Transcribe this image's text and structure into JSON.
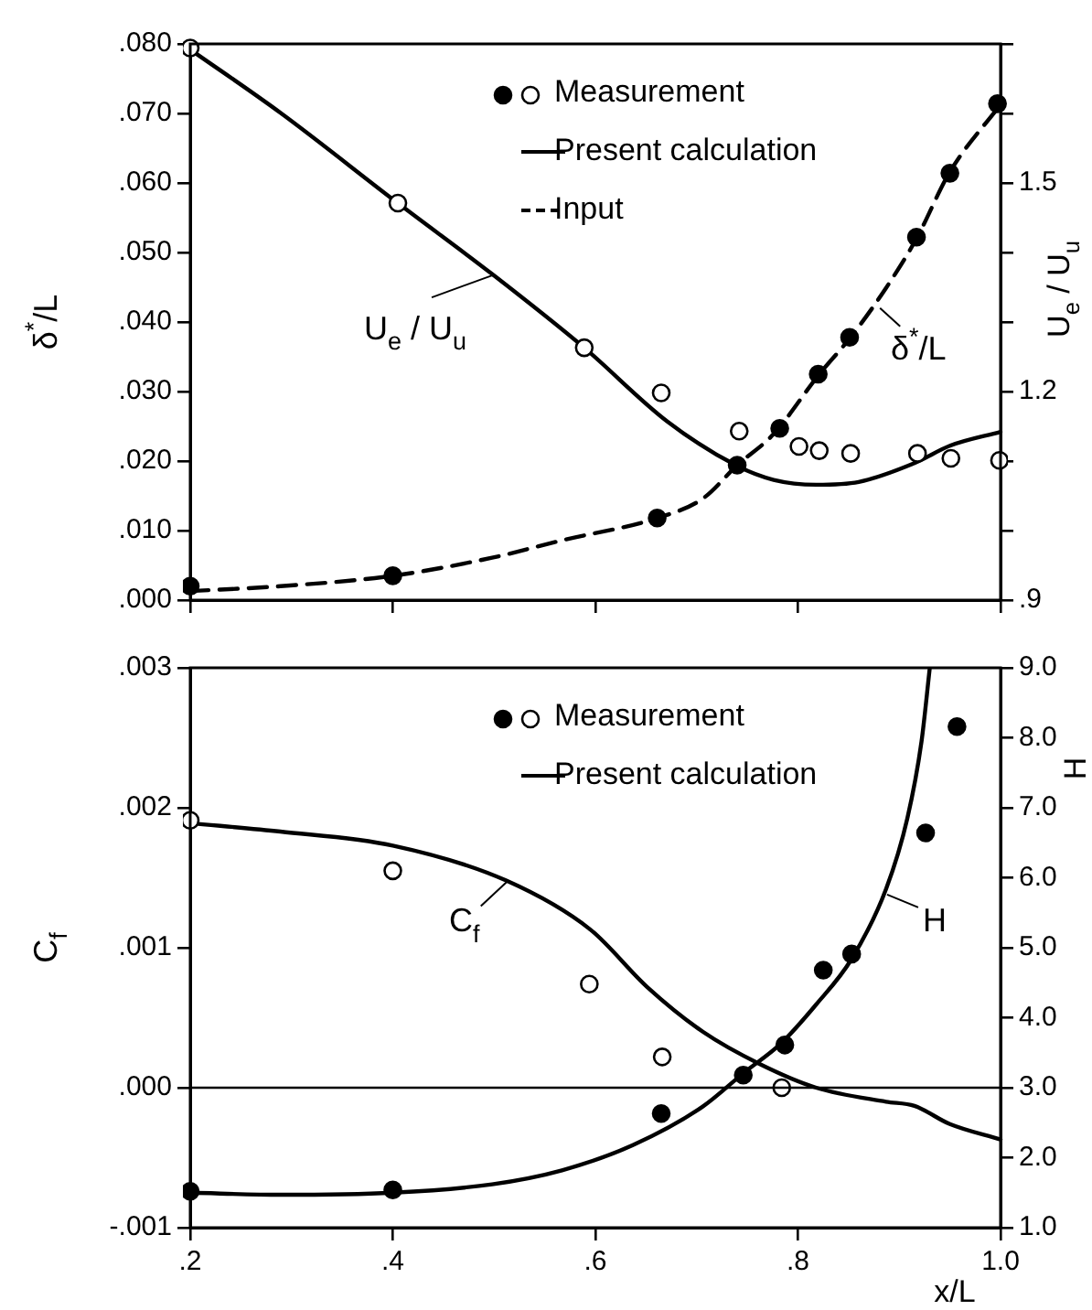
{
  "chart_data": [
    {
      "type": "line",
      "ylabel": "δ$^{*}$/L",
      "y2label": "U$_{e}$ / U$_{u}$",
      "legend": "top right",
      "tick_labels": "y",
      "xlim": [
        0.2,
        1.0
      ],
      "xticks": [
        {
          "value": 0.2,
          "label": null
        },
        {
          "value": 0.4,
          "label": null
        },
        {
          "value": 0.6,
          "label": null
        },
        {
          "value": 0.8,
          "label": null
        },
        {
          "value": 1.0,
          "label": null
        }
      ],
      "ylim": [
        0,
        0.08
      ],
      "yticks": [
        {
          "value": 0,
          "label": ".000"
        },
        {
          "value": 0.01,
          "label": ".010"
        },
        {
          "value": 0.02,
          "label": ".020"
        },
        {
          "value": 0.03,
          "label": ".030"
        },
        {
          "value": 0.04,
          "label": ".040"
        },
        {
          "value": 0.05,
          "label": ".050"
        },
        {
          "value": 0.06,
          "label": ".060"
        },
        {
          "value": 0.07,
          "label": ".070"
        },
        {
          "value": 0.08,
          "label": ".080"
        }
      ],
      "y2lim": [
        0.9,
        1.7
      ],
      "y2ticks": [
        {
          "value": 0.9,
          "label": ".9"
        },
        {
          "value": 1.0,
          "label": null
        },
        {
          "value": 1.1,
          "label": null
        },
        1.2,
        {
          "value": 1.3,
          "label": null
        },
        {
          "value": 1.4,
          "label": null
        },
        1.5,
        {
          "value": 1.6,
          "label": null
        },
        {
          "value": 1.7,
          "label": null
        }
      ],
      "annotations": [
        {
          "text": "U$_{e}$ / U$_{u}$",
          "x": 0.498,
          "y": 0.0467
        },
        {
          "text": "δ$^{*}$/L",
          "x": 0.881,
          "y": 0.042
        }
      ],
      "series": [
        {
          "name": "Measurement",
          "type": "scatter",
          "marker": "circle",
          "color": "#ffffff",
          "axis": "y2",
          "x": [
            0.2,
            0.405,
            0.589,
            0.665,
            0.742,
            0.801,
            0.821,
            0.852,
            0.918,
            0.951,
            0.999
          ],
          "values": [
            1.694,
            1.471,
            1.263,
            1.198,
            1.143,
            1.121,
            1.115,
            1.111,
            1.111,
            1.104,
            1.101
          ]
        },
        {
          "type": "scatter",
          "marker": "circle",
          "color": "#000000",
          "x": [
            0.2,
            0.4,
            0.661,
            0.74,
            0.782,
            0.82,
            0.851,
            0.917,
            0.95,
            0.997
          ],
          "values": [
            0.002,
            0.0035,
            0.0118,
            0.0194,
            0.0247,
            0.0325,
            0.0378,
            0.0522,
            0.0614,
            0.0714
          ]
        },
        {
          "name": "Present calculation",
          "type": "line",
          "marker": "none",
          "line_style": "solid",
          "color": "#000000",
          "axis": "y2",
          "x": [
            0.2,
            0.289,
            0.405,
            0.498,
            0.589,
            0.671,
            0.74,
            0.776,
            0.818,
            0.86,
            0.915,
            0.95,
            1.0
          ],
          "values": [
            1.692,
            1.601,
            1.471,
            1.369,
            1.263,
            1.157,
            1.093,
            1.073,
            1.066,
            1.07,
            1.097,
            1.122,
            1.142
          ]
        },
        {
          "name": "Input",
          "type": "line",
          "marker": "none",
          "line_style": "dashed",
          "color": "#000000",
          "x": [
            0.2,
            0.289,
            0.4,
            0.498,
            0.567,
            0.661,
            0.706,
            0.74,
            0.776,
            0.82,
            0.853,
            0.887,
            0.917,
            0.95,
            1.0
          ],
          "values": [
            0.0013,
            0.002,
            0.0035,
            0.0061,
            0.0086,
            0.0118,
            0.0146,
            0.0194,
            0.0239,
            0.0323,
            0.038,
            0.0449,
            0.052,
            0.0616,
            0.0713
          ]
        }
      ]
    },
    {
      "type": "line",
      "xlabel": "x/L",
      "ylabel": "C$_{f}$",
      "y2label": "H",
      "legend": "top right",
      "xlim": [
        0.2,
        1.0
      ],
      "xticks": [
        {
          "value": 0.2,
          "label": ".2"
        },
        {
          "value": 0.4,
          "label": ".4"
        },
        {
          "value": 0.6,
          "label": ".6"
        },
        {
          "value": 0.8,
          "label": ".8"
        },
        {
          "value": 1.0,
          "label": "1.0"
        }
      ],
      "ylim": [
        -0.001,
        0.003
      ],
      "yticks": [
        {
          "value": -0.001,
          "label": "-.001"
        },
        {
          "value": 0,
          "label": ".000"
        },
        {
          "value": 0.001,
          "label": ".001"
        },
        {
          "value": 0.002,
          "label": ".002"
        },
        {
          "value": 0.003,
          "label": ".003"
        }
      ],
      "y2lim": [
        1,
        9
      ],
      "y2ticks": [
        {
          "value": 1,
          "label": "1.0"
        },
        {
          "value": 2,
          "label": "2.0"
        },
        {
          "value": 3,
          "label": "3.0"
        },
        {
          "value": 4,
          "label": "4.0"
        },
        {
          "value": 5,
          "label": "5.0"
        },
        {
          "value": 6,
          "label": "6.0"
        },
        {
          "value": 7,
          "label": "7.0"
        },
        {
          "value": 8,
          "label": "8.0"
        },
        {
          "value": 9,
          "label": "9.0"
        }
      ],
      "ref_lines": [
        {
          "axis": "y",
          "value": 0,
          "color": "#000000"
        }
      ],
      "annotations": [
        {
          "text": "C$_{f}$",
          "x": 0.514,
          "y": 0.00148
        },
        {
          "text": "H",
          "x": 0.888,
          "y": 0.00138
        }
      ],
      "series": [
        {
          "name": "Measurement",
          "type": "scatter",
          "marker": "circle",
          "color": "#ffffff",
          "x": [
            0.2,
            0.4,
            0.594,
            0.666,
            0.784
          ],
          "values": [
            0.00191,
            0.00155,
            0.00074,
            0.00022,
            0.0
          ]
        },
        {
          "type": "scatter",
          "marker": "circle",
          "color": "#000000",
          "axis": "y2",
          "x": [
            0.2,
            0.4,
            0.665,
            0.746,
            0.787,
            0.825,
            0.853,
            0.926,
            0.957
          ],
          "values": [
            1.52,
            1.54,
            2.63,
            3.18,
            3.61,
            4.68,
            4.91,
            6.64,
            8.16
          ]
        },
        {
          "name": "Present calculation",
          "type": "line",
          "marker": "none",
          "line_style": "solid",
          "color": "#000000",
          "x": [
            0.2,
            0.289,
            0.4,
            0.512,
            0.595,
            0.651,
            0.706,
            0.762,
            0.818,
            0.887,
            0.915,
            0.95,
            1.0
          ],
          "values": [
            0.00189,
            0.00183,
            0.00173,
            0.00148,
            0.00113,
            0.00072,
            0.0004,
            0.00017,
            0,
            -0.0001,
            -0.00013,
            -0.00026,
            -0.00037
          ]
        },
        {
          "type": "line",
          "marker": "none",
          "line_style": "solid",
          "color": "#000000",
          "axis": "y2",
          "x": [
            0.2,
            0.289,
            0.4,
            0.498,
            0.567,
            0.637,
            0.706,
            0.748,
            0.783,
            0.818,
            0.853,
            0.887,
            0.908,
            0.922,
            0.93
          ],
          "values": [
            1.5,
            1.47,
            1.5,
            1.62,
            1.82,
            2.18,
            2.73,
            3.23,
            3.63,
            4.19,
            4.84,
            5.84,
            6.85,
            7.95,
            8.98
          ]
        }
      ]
    }
  ]
}
